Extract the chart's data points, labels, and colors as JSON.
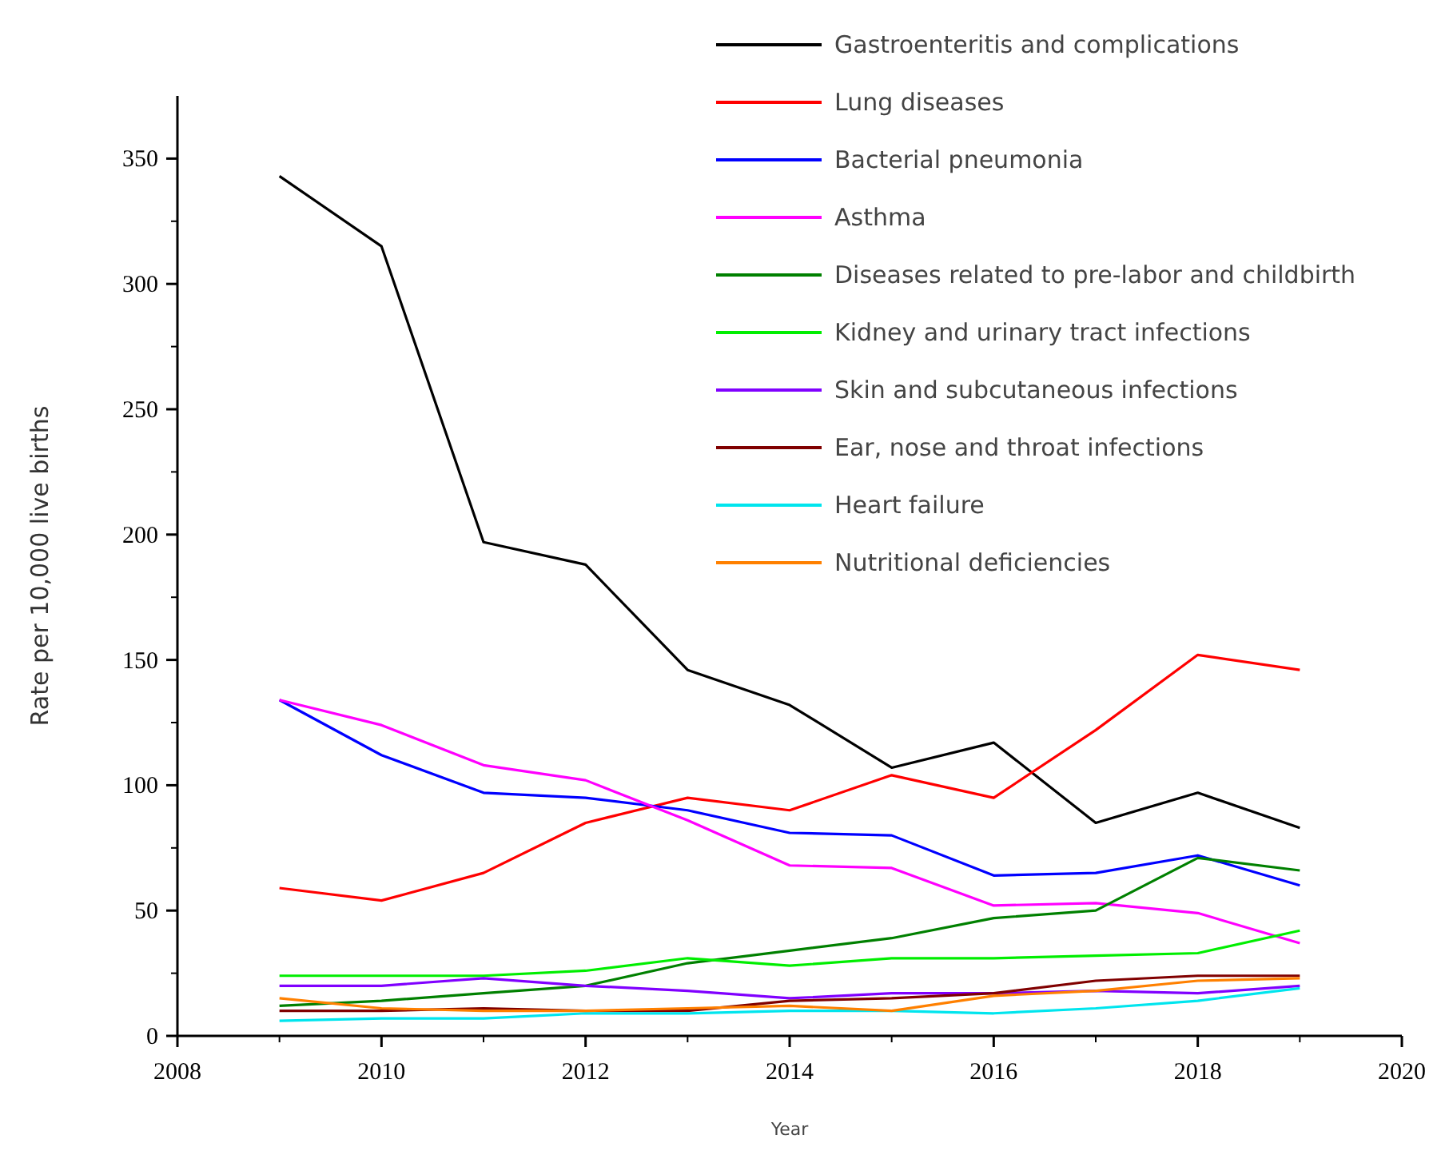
{
  "chart_data": {
    "type": "line",
    "xlabel": "Year",
    "ylabel": "Rate per 10,000 live births",
    "x": [
      2009,
      2010,
      2011,
      2012,
      2013,
      2014,
      2015,
      2016,
      2017,
      2018,
      2019
    ],
    "xlim": [
      2008,
      2020
    ],
    "xticks": [
      2008,
      2010,
      2012,
      2014,
      2016,
      2018,
      2020
    ],
    "ylim": [
      0,
      375
    ],
    "yticks": [
      0,
      50,
      100,
      150,
      200,
      250,
      300,
      350
    ],
    "grid": false,
    "legend": "top right",
    "marker": "none",
    "line_style": "solid",
    "series": [
      {
        "name": "Gastroenteritis and complications",
        "color": "#000000",
        "values": [
          343,
          315,
          197,
          188,
          146,
          132,
          107,
          117,
          85,
          97,
          83
        ]
      },
      {
        "name": "Lung diseases",
        "color": "#ff0000",
        "values": [
          59,
          54,
          65,
          85,
          95,
          90,
          104,
          95,
          122,
          152,
          146
        ]
      },
      {
        "name": "Bacterial pneumonia",
        "color": "#0000ff",
        "values": [
          134,
          112,
          97,
          95,
          90,
          81,
          80,
          64,
          65,
          72,
          60
        ]
      },
      {
        "name": "Asthma",
        "color": "#ff00ff",
        "values": [
          134,
          124,
          108,
          102,
          86,
          68,
          67,
          52,
          53,
          49,
          37
        ]
      },
      {
        "name": "Diseases related to pre-labor and childbirth",
        "color": "#008000",
        "values": [
          12,
          14,
          17,
          20,
          29,
          34,
          39,
          47,
          50,
          71,
          66
        ]
      },
      {
        "name": "Kidney and urinary tract infections",
        "color": "#00ee00",
        "values": [
          24,
          24,
          24,
          26,
          31,
          28,
          31,
          31,
          32,
          33,
          42
        ]
      },
      {
        "name": "Skin and subcutaneous infections",
        "color": "#8000ff",
        "values": [
          20,
          20,
          23,
          20,
          18,
          15,
          17,
          17,
          18,
          17,
          20
        ]
      },
      {
        "name": "Ear, nose and throat infections",
        "color": "#800000",
        "values": [
          10,
          10,
          11,
          10,
          10,
          14,
          15,
          17,
          22,
          24,
          24
        ]
      },
      {
        "name": "Heart failure",
        "color": "#00e5ee",
        "values": [
          6,
          7,
          7,
          9,
          9,
          10,
          10,
          9,
          11,
          14,
          19
        ]
      },
      {
        "name": "Nutritional deficiencies",
        "color": "#ff8000",
        "values": [
          15,
          11,
          10,
          10,
          11,
          12,
          10,
          16,
          18,
          22,
          23
        ]
      }
    ]
  }
}
